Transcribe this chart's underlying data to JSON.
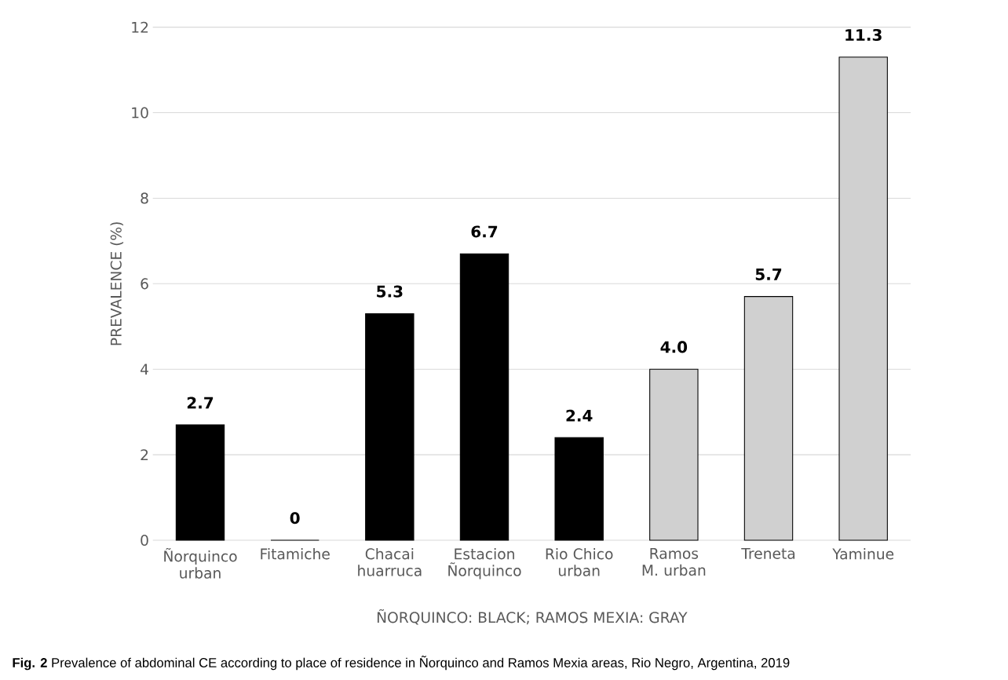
{
  "chart_data": {
    "type": "bar",
    "xlabel": "ÑORQUINCO: BLACK;  RAMOS MEXIA: GRAY",
    "ylabel": "PREVALENCE (%)",
    "categories": [
      "Ñorquinco urban",
      "Fitamiche",
      "Chacai huarruca",
      "Estacion Ñorquinco",
      "Rio Chico urban",
      "Ramos M. urban",
      "Treneta",
      "Yaminue"
    ],
    "values": [
      2.7,
      0,
      5.3,
      6.7,
      2.4,
      4.0,
      5.7,
      11.3
    ],
    "value_labels": [
      "2.7",
      "0",
      "5.3",
      "6.7",
      "2.4",
      "4.0",
      "5.7",
      "11.3"
    ],
    "colors": [
      "#000000",
      "#000000",
      "#000000",
      "#000000",
      "#000000",
      "#d0d0d0",
      "#d0d0d0",
      "#d0d0d0"
    ],
    "ylim": [
      0,
      12
    ],
    "yticks": [
      0,
      2,
      4,
      6,
      8,
      10,
      12
    ],
    "grid": "y",
    "annotations": [
      "**Fig. 2** Prevalence of abdominal CE according to place of residence in Ñorquinco and Ramos Mexia areas, Rio Negro, Argentina, 2019"
    ]
  }
}
